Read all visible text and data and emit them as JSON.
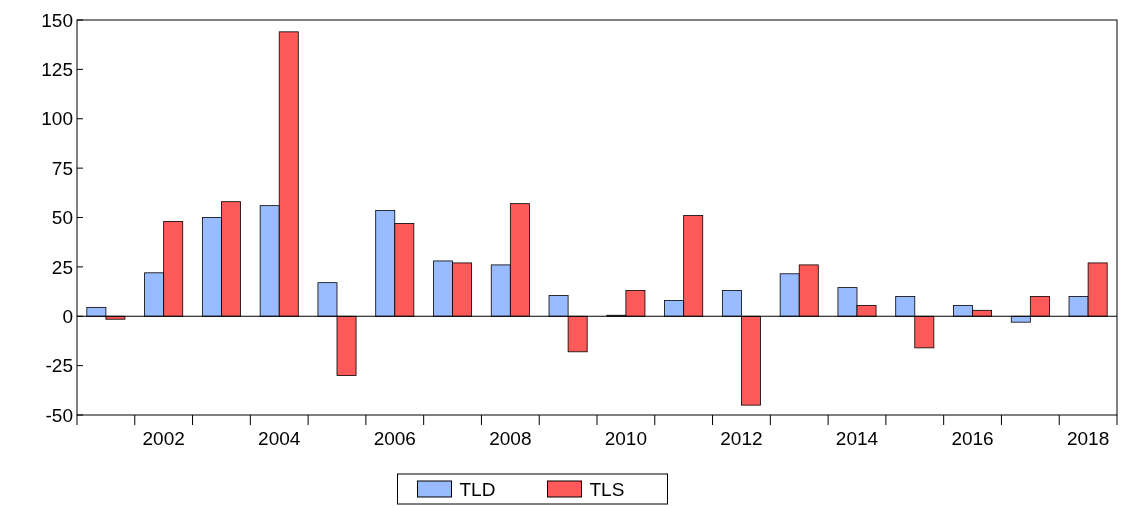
{
  "chart_data": {
    "type": "bar",
    "categories": [
      null,
      "2002",
      null,
      "2004",
      null,
      "2006",
      null,
      "2008",
      null,
      "2010",
      null,
      "2012",
      null,
      "2014",
      null,
      "2016",
      null,
      "2018"
    ],
    "series": [
      {
        "name": "TLD",
        "color": "#99bbff",
        "values": [
          4.5,
          22,
          50,
          56,
          17,
          53.5,
          28,
          26,
          10.5,
          0.5,
          8,
          13,
          21.5,
          14.5,
          10,
          5.5,
          -3,
          10
        ]
      },
      {
        "name": "TLS",
        "color": "#ff5a5a",
        "values": [
          -1.5,
          48,
          58,
          144,
          -30,
          47,
          27,
          57,
          -18,
          13,
          51,
          -45,
          26,
          5.5,
          -16,
          3,
          10,
          27
        ]
      }
    ],
    "ylim": [
      -50,
      150
    ],
    "yticks": [
      -50,
      -25,
      0,
      25,
      50,
      75,
      100,
      125,
      150
    ],
    "legend": "bottom"
  }
}
